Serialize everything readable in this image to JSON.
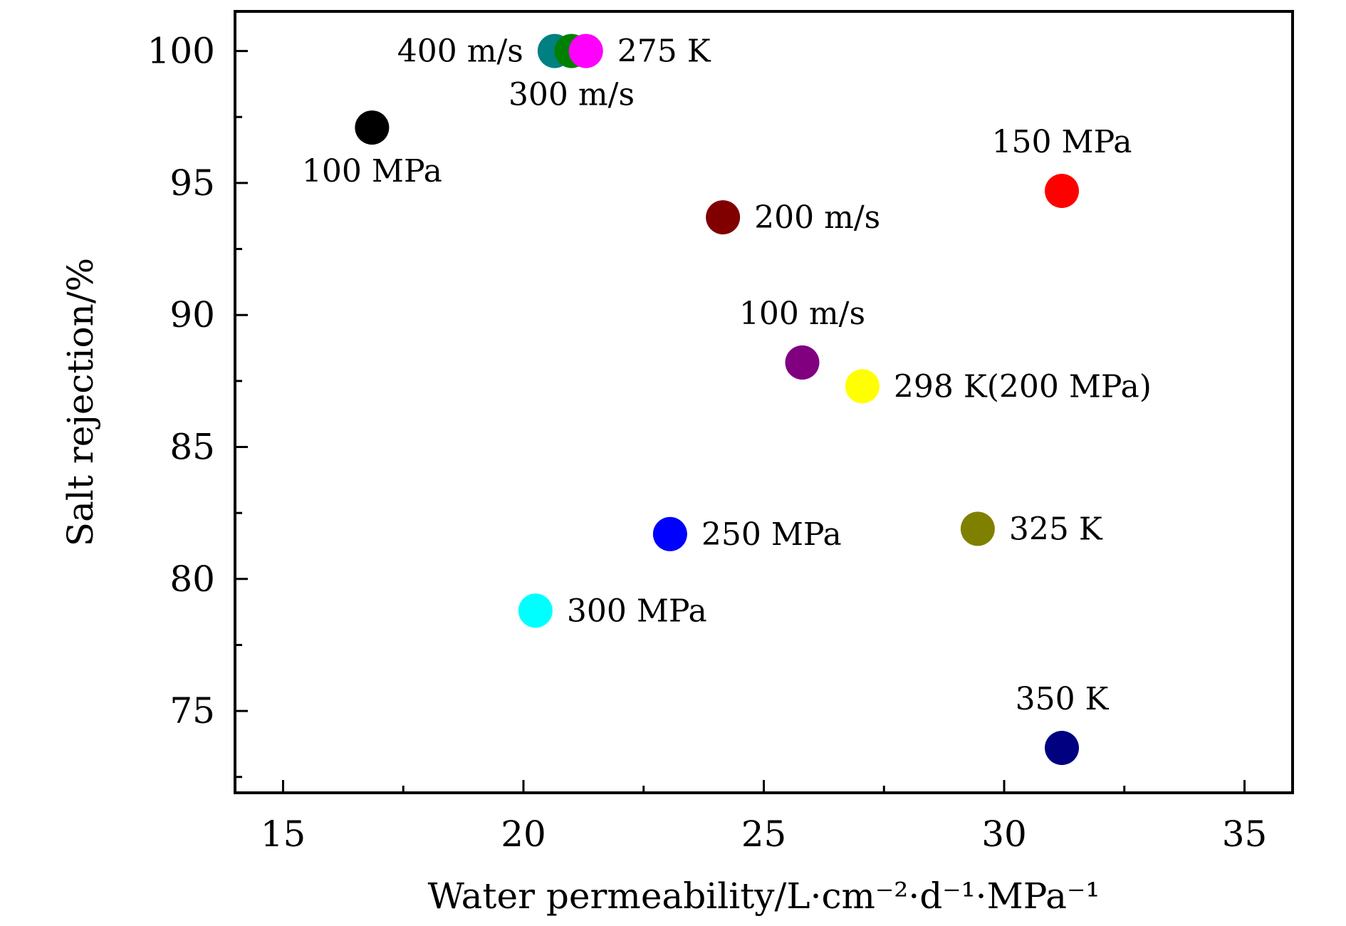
{
  "chart_data": {
    "type": "scatter",
    "xlabel": "Water permeability/L·cm⁻²·d⁻¹·MPa⁻¹",
    "ylabel": "Salt rejection/%",
    "xlim": [
      14,
      36
    ],
    "ylim": [
      71.9,
      101.5
    ],
    "x_ticks": [
      15,
      20,
      25,
      30,
      35
    ],
    "x_tick_labels": [
      "15",
      "20",
      "25",
      "30",
      "35"
    ],
    "y_ticks": [
      75,
      80,
      85,
      90,
      95,
      100
    ],
    "y_tick_labels": [
      "75",
      "80",
      "85",
      "90",
      "95",
      "100"
    ],
    "x_minor_step": 2.5,
    "y_minor_step": 2.5,
    "grid": false,
    "legend": "none",
    "points": [
      {
        "label": "100 MPa",
        "x": 16.85,
        "y": 97.1,
        "color": "#000000",
        "label_pos": "below"
      },
      {
        "label": "400 m/s",
        "x": 20.65,
        "y": 100.0,
        "color": "#008080",
        "label_pos": "left"
      },
      {
        "label": "300 m/s",
        "x": 21.0,
        "y": 100.0,
        "color": "#008000",
        "label_pos": "below"
      },
      {
        "label": "275 K",
        "x": 21.3,
        "y": 100.0,
        "color": "#ff00ff",
        "label_pos": "right"
      },
      {
        "label": "150 MPa",
        "x": 31.2,
        "y": 94.7,
        "color": "#ff0000",
        "label_pos": "above"
      },
      {
        "label": "200 m/s",
        "x": 24.15,
        "y": 93.7,
        "color": "#800000",
        "label_pos": "right"
      },
      {
        "label": "100 m/s",
        "x": 25.8,
        "y": 88.2,
        "color": "#800080",
        "label_pos": "above"
      },
      {
        "label": "298 K(200 MPa)",
        "x": 27.05,
        "y": 87.3,
        "color": "#ffff00",
        "label_pos": "right"
      },
      {
        "label": "250 MPa",
        "x": 23.05,
        "y": 81.7,
        "color": "#0000ff",
        "label_pos": "right"
      },
      {
        "label": "325 K",
        "x": 29.45,
        "y": 81.9,
        "color": "#808000",
        "label_pos": "right"
      },
      {
        "label": "300 MPa",
        "x": 20.25,
        "y": 78.8,
        "color": "#00ffff",
        "label_pos": "right"
      },
      {
        "label": "350 K",
        "x": 31.2,
        "y": 73.6,
        "color": "#000080",
        "label_pos": "above"
      }
    ]
  }
}
